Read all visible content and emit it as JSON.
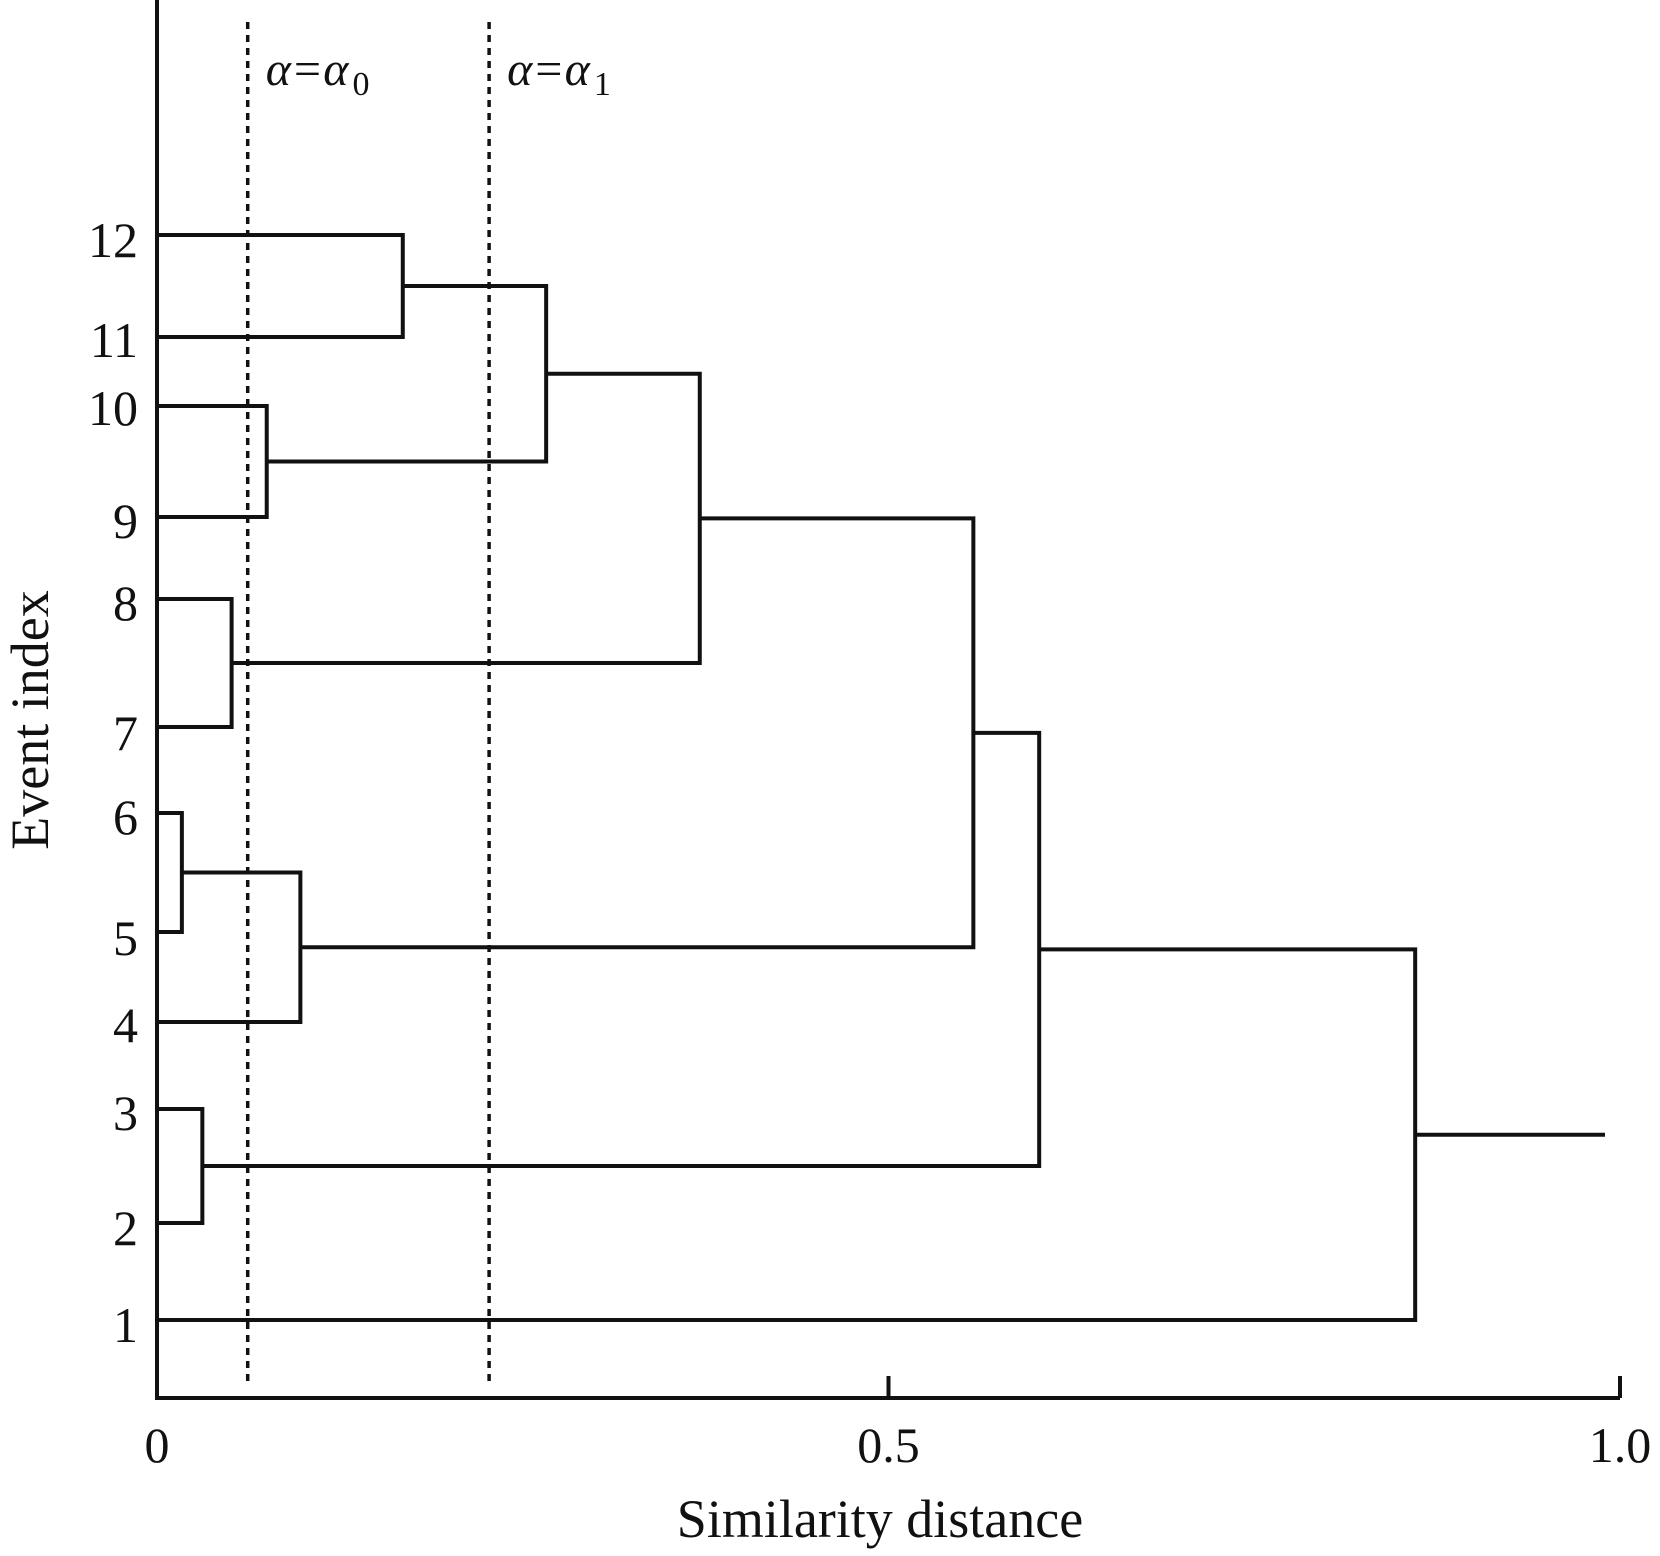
{
  "chart_data": {
    "type": "dendrogram",
    "xlabel": "Similarity distance",
    "ylabel": "Event index",
    "xlim": [
      0,
      1.0
    ],
    "x_ticks": [
      {
        "value": 0,
        "label": "0"
      },
      {
        "value": 0.5,
        "label": "0.5"
      },
      {
        "value": 1.0,
        "label": "1.0"
      }
    ],
    "leaf_order": [
      "1",
      "2",
      "3",
      "4",
      "5",
      "6",
      "7",
      "8",
      "9",
      "10",
      "11",
      "12"
    ],
    "merges": [
      {
        "left": "5",
        "right": "6",
        "distance": 0.017
      },
      {
        "left": "2",
        "right": "3",
        "distance": 0.031
      },
      {
        "left": "7",
        "right": "8",
        "distance": 0.051
      },
      {
        "left": "9",
        "right": "10",
        "distance": 0.075
      },
      {
        "left": "4",
        "right": "5-6",
        "distance": 0.098
      },
      {
        "left": "11",
        "right": "12",
        "distance": 0.168
      },
      {
        "left": "9-10",
        "right": "11-12",
        "distance": 0.266
      },
      {
        "left": "7-8",
        "right": "9-12",
        "distance": 0.371
      },
      {
        "left": "4-6",
        "right": "7-12",
        "distance": 0.558
      },
      {
        "left": "2-3",
        "right": "4-12",
        "distance": 0.603
      },
      {
        "left": "1",
        "right": "2-12",
        "distance": 0.86
      }
    ],
    "root_stub_end": 1.0,
    "thresholds": [
      {
        "base": "α=α",
        "sub": "0",
        "value": 0.062
      },
      {
        "base": "α=α",
        "sub": "1",
        "value": 0.227
      }
    ]
  }
}
